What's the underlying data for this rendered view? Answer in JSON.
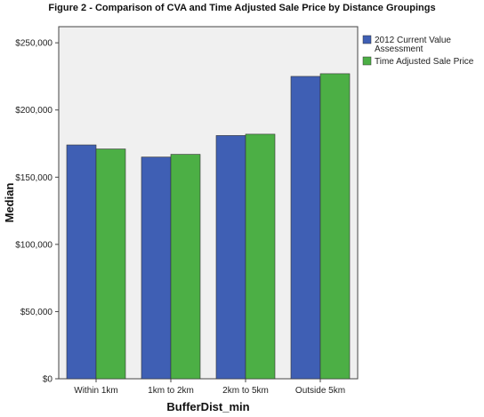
{
  "chart_data": {
    "type": "bar",
    "title": "Figure 2 - Comparison of CVA and Time Adjusted Sale Price by Distance Groupings",
    "xlabel": "BufferDist_min",
    "ylabel": "Median",
    "categories": [
      "Within 1km",
      "1km to 2km",
      "2km to 5km",
      "Outside 5km"
    ],
    "series": [
      {
        "name": "2012 Current Value Assessment",
        "values": [
          174000,
          165000,
          181000,
          225000
        ],
        "color": "#3f5fb4"
      },
      {
        "name": "Time Adjusted Sale Price",
        "values": [
          171000,
          167000,
          182000,
          227000
        ],
        "color": "#4caf45"
      }
    ],
    "ylim": [
      0,
      262000
    ],
    "yticks": [
      0,
      50000,
      100000,
      150000,
      200000,
      250000
    ],
    "ytick_labels": [
      "$0",
      "$50,000",
      "$100,000",
      "$150,000",
      "$200,000",
      "$250,000"
    ],
    "legend_position": "top-right",
    "legend_labels": [
      [
        "2012 Current Value",
        "Assessment"
      ],
      [
        "Time Adjusted Sale Price"
      ]
    ],
    "plot_background": "#f0f0f0",
    "grid": false
  }
}
